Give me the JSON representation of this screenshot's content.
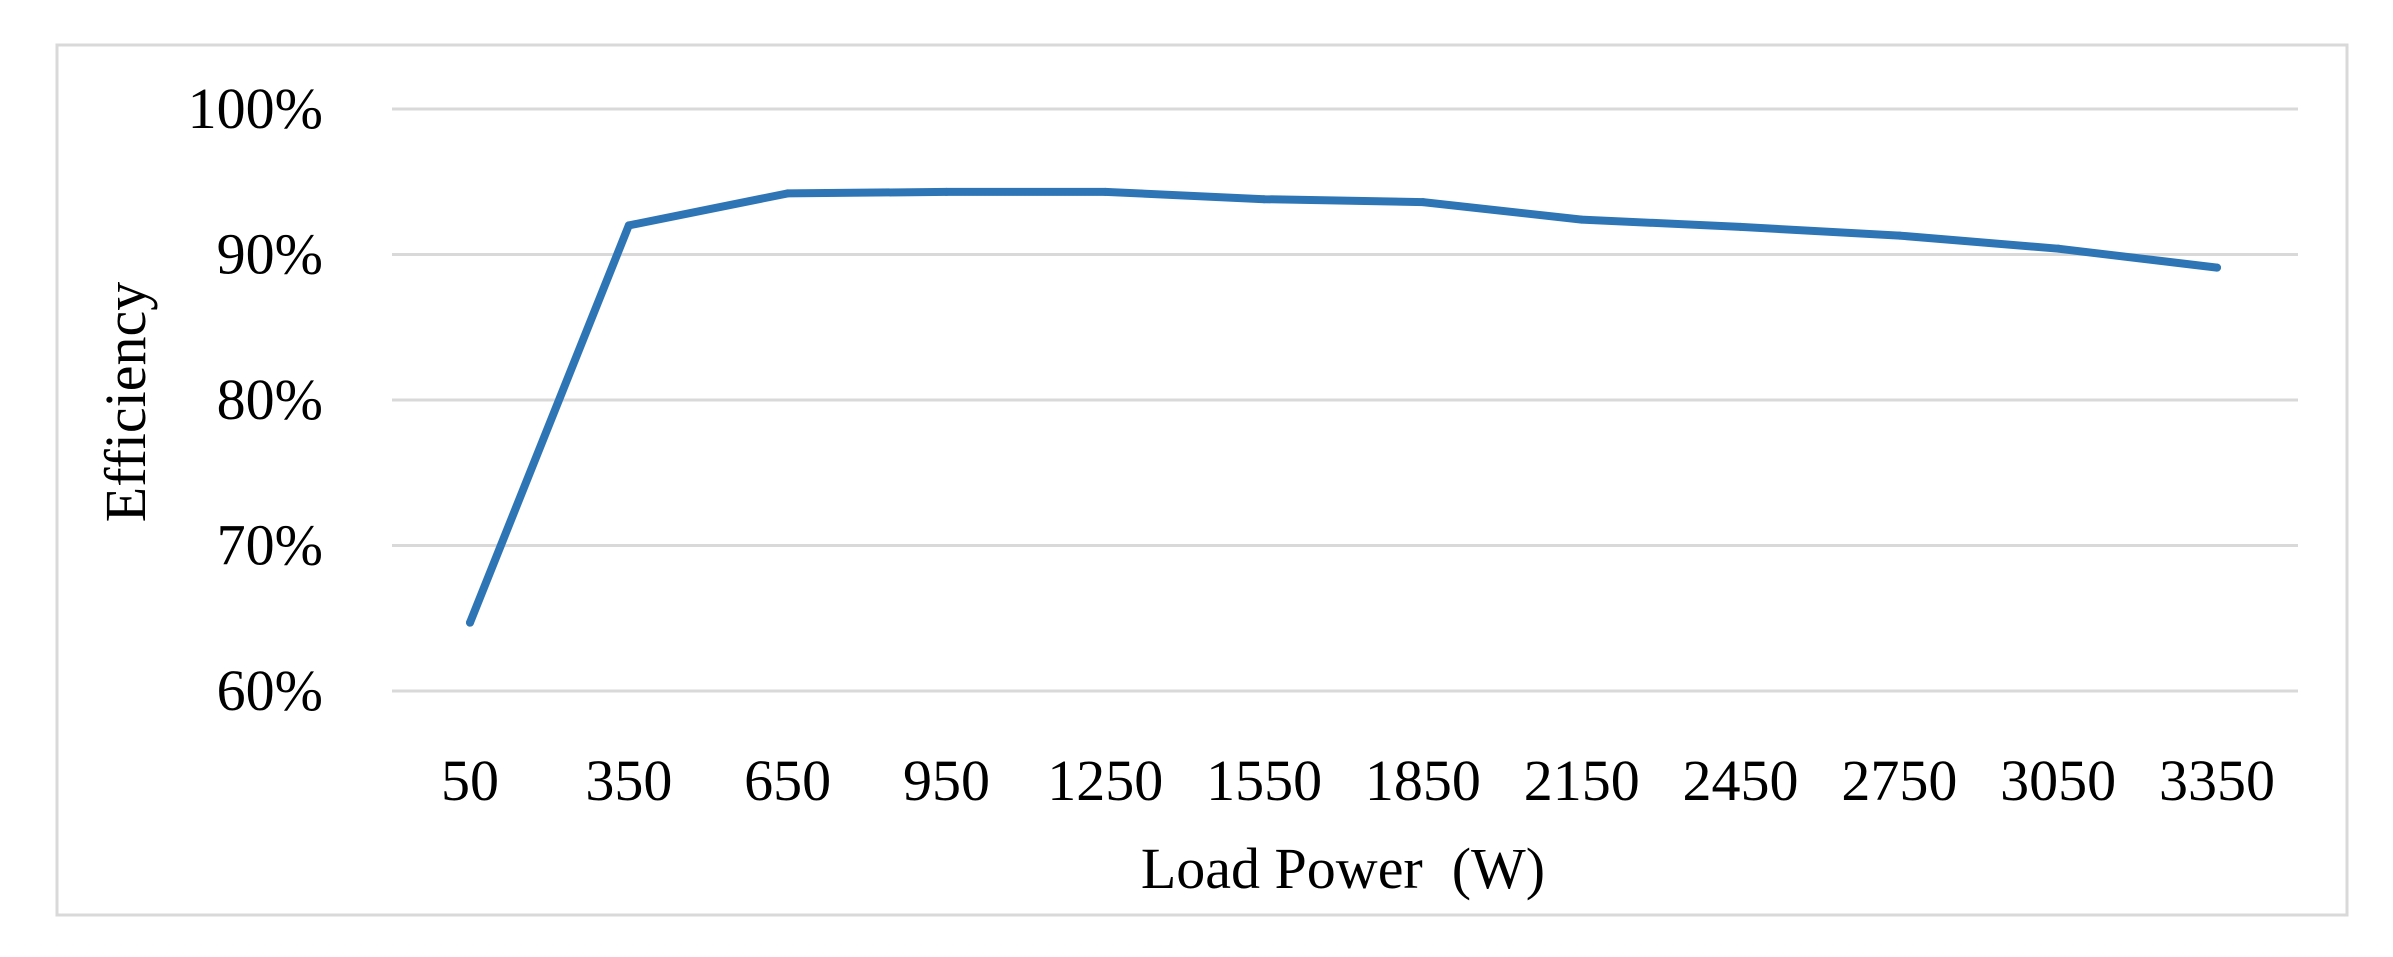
{
  "chart_data": {
    "type": "line",
    "title": "",
    "xlabel": "Load Power  (W)",
    "ylabel": "Efficiency",
    "categories": [
      "50",
      "350",
      "650",
      "950",
      "1250",
      "1550",
      "1850",
      "2150",
      "2450",
      "2750",
      "3050",
      "3350"
    ],
    "x": [
      50,
      350,
      650,
      950,
      1250,
      1550,
      1850,
      2150,
      2450,
      2750,
      3050,
      3350
    ],
    "y_tick_labels": [
      "60%",
      "70%",
      "80%",
      "90%",
      "100%"
    ],
    "y_ticks": [
      60,
      70,
      80,
      90,
      100
    ],
    "ylim": [
      60,
      100
    ],
    "y_unit": "%",
    "grid": true,
    "legend": "none",
    "series": [
      {
        "values": [
          64.7,
          92.0,
          94.2,
          94.3,
          94.3,
          93.8,
          93.6,
          92.4,
          91.9,
          91.3,
          90.4,
          89.1
        ]
      }
    ],
    "colors": {
      "line": "#2E75B6",
      "grid": "#D9D9D9",
      "border": "#D9D9D9"
    }
  }
}
